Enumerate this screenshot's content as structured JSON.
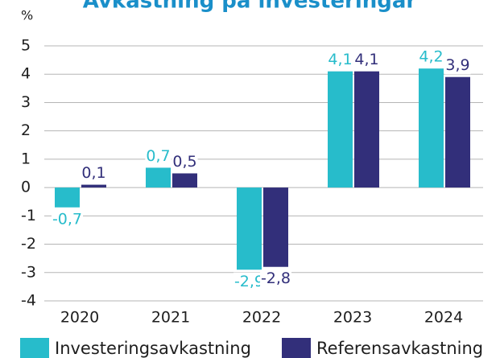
{
  "chart_data": {
    "type": "bar",
    "title": "Avkastning på investeringar",
    "y_label": "%",
    "categories": [
      "2020",
      "2021",
      "2022",
      "2023",
      "2024"
    ],
    "series": [
      {
        "name": "Investeringsavkastning",
        "color": "#27bccb",
        "values": [
          -0.7,
          0.7,
          -2.9,
          4.1,
          4.2
        ],
        "value_labels": [
          "-0,7",
          "0,7",
          "-2,9",
          "4,1",
          "4,2"
        ]
      },
      {
        "name": "Referensavkastning",
        "color": "#322f7a",
        "values": [
          0.1,
          0.5,
          -2.8,
          4.1,
          3.9
        ],
        "value_labels": [
          "0,1",
          "0,5",
          "-2,8",
          "4,1",
          "3,9"
        ]
      }
    ],
    "ylim": [
      -4,
      5
    ],
    "yticks": [
      -4,
      -3,
      -2,
      -1,
      0,
      1,
      2,
      3,
      4,
      5
    ],
    "grid": true,
    "legend": "bottom"
  }
}
